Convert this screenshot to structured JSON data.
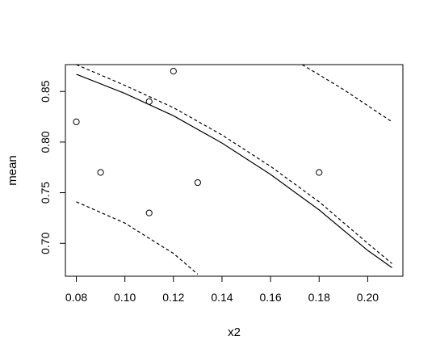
{
  "chart_data": {
    "type": "scatter",
    "title": "",
    "xlabel": "x2",
    "ylabel": "mean",
    "xlim": [
      0.0755,
      0.2145
    ],
    "ylim": [
      0.6675,
      0.8765
    ],
    "grid": false,
    "legend": "none",
    "x_ticks": [
      0.08,
      0.1,
      0.12,
      0.14,
      0.16,
      0.18,
      0.2
    ],
    "x_tick_labels": [
      "0.08",
      "0.10",
      "0.12",
      "0.14",
      "0.16",
      "0.18",
      "0.20"
    ],
    "y_ticks": [
      0.7,
      0.75,
      0.8,
      0.85
    ],
    "y_tick_labels": [
      "0.70",
      "0.75",
      "0.80",
      "0.85"
    ],
    "points": [
      {
        "x": 0.08,
        "y": 0.82
      },
      {
        "x": 0.09,
        "y": 0.77
      },
      {
        "x": 0.11,
        "y": 0.84
      },
      {
        "x": 0.11,
        "y": 0.73
      },
      {
        "x": 0.12,
        "y": 0.87
      },
      {
        "x": 0.13,
        "y": 0.76
      },
      {
        "x": 0.18,
        "y": 0.77
      }
    ],
    "lines": [
      {
        "style": "solid",
        "x": [
          0.08,
          0.1,
          0.12,
          0.14,
          0.16,
          0.18,
          0.2,
          0.21
        ],
        "y": [
          0.867,
          0.848,
          0.826,
          0.799,
          0.768,
          0.733,
          0.693,
          0.676
        ]
      },
      {
        "style": "dashed",
        "x": [
          0.08,
          0.1,
          0.12,
          0.14,
          0.16,
          0.18,
          0.2,
          0.21
        ],
        "y": [
          0.8765,
          0.856,
          0.834,
          0.807,
          0.776,
          0.741,
          0.7,
          0.68
        ]
      },
      {
        "style": "dashed",
        "x": [
          0.08,
          0.1,
          0.12,
          0.13
        ],
        "y": [
          0.741,
          0.72,
          0.69,
          0.6695
        ]
      },
      {
        "style": "dashed",
        "x": [
          0.173,
          0.19,
          0.21
        ],
        "y": [
          0.8765,
          0.852,
          0.82
        ]
      }
    ]
  }
}
